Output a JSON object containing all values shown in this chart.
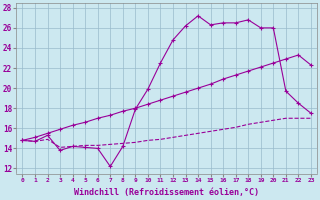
{
  "xlabel": "Windchill (Refroidissement éolien,°C)",
  "bg_color": "#cce8f0",
  "line_color": "#990099",
  "grid_color": "#99bbcc",
  "xlim": [
    -0.5,
    23.5
  ],
  "ylim": [
    11.5,
    28.5
  ],
  "xticks": [
    0,
    1,
    2,
    3,
    4,
    5,
    6,
    7,
    8,
    9,
    10,
    11,
    12,
    13,
    14,
    15,
    16,
    17,
    18,
    19,
    20,
    21,
    22,
    23
  ],
  "yticks": [
    12,
    14,
    16,
    18,
    20,
    22,
    24,
    26,
    28
  ],
  "line1_x": [
    0,
    1,
    2,
    3,
    4,
    5,
    6,
    7,
    8,
    9,
    10,
    11,
    12,
    13,
    14,
    15,
    16,
    17,
    18,
    19,
    20,
    21,
    22,
    23
  ],
  "line1_y": [
    14.8,
    14.7,
    15.3,
    13.8,
    14.2,
    14.1,
    14.0,
    12.2,
    14.2,
    17.9,
    19.9,
    22.5,
    24.8,
    26.2,
    27.2,
    26.3,
    26.5,
    26.5,
    26.8,
    26.0,
    26.0,
    19.7,
    18.5,
    17.5
  ],
  "line2_x": [
    0,
    1,
    2,
    3,
    4,
    5,
    6,
    7,
    8,
    9,
    10,
    11,
    12,
    13,
    14,
    15,
    16,
    17,
    18,
    19,
    20,
    21,
    22,
    23
  ],
  "line2_y": [
    14.8,
    15.1,
    15.5,
    15.9,
    16.3,
    16.6,
    17.0,
    17.3,
    17.7,
    18.0,
    18.4,
    18.8,
    19.2,
    19.6,
    20.0,
    20.4,
    20.9,
    21.3,
    21.7,
    22.1,
    22.5,
    22.9,
    23.3,
    22.3
  ],
  "line3_x": [
    0,
    1,
    2,
    3,
    4,
    5,
    6,
    7,
    8,
    9,
    10,
    11,
    12,
    13,
    14,
    15,
    16,
    17,
    18,
    19,
    20,
    21,
    22,
    23
  ],
  "line3_y": [
    14.8,
    14.7,
    14.9,
    14.1,
    14.2,
    14.3,
    14.3,
    14.4,
    14.5,
    14.6,
    14.8,
    14.9,
    15.1,
    15.3,
    15.5,
    15.7,
    15.9,
    16.1,
    16.4,
    16.6,
    16.8,
    17.0,
    17.0,
    17.0
  ]
}
